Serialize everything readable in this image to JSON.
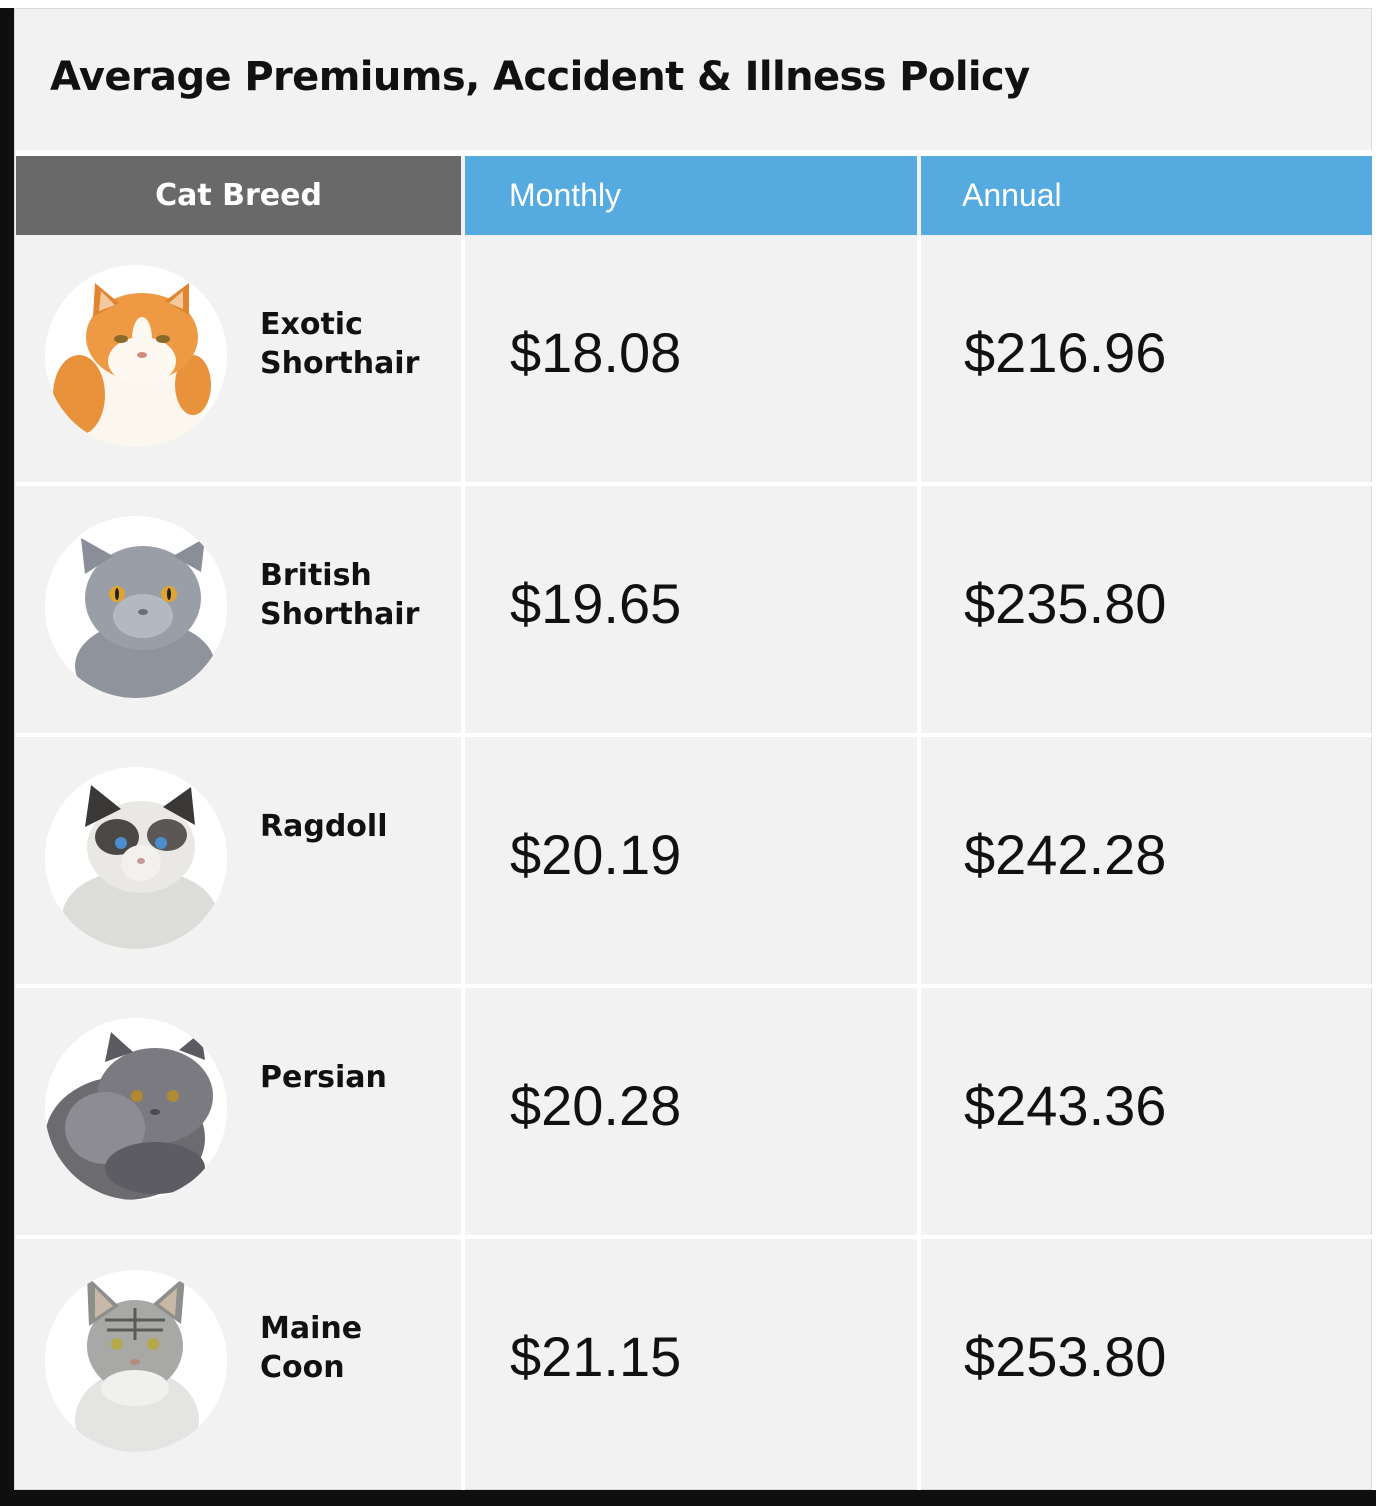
{
  "chart_data": {
    "type": "table",
    "title": "Average Premiums, Accident & Illness Policy",
    "columns": [
      "Cat Breed",
      "Monthly",
      "Annual"
    ],
    "rows": [
      {
        "breed": "Exotic Shorthair",
        "monthly": "$18.08",
        "annual": "$216.96",
        "monthly_value": 18.08,
        "annual_value": 216.96
      },
      {
        "breed": "British Shorthair",
        "monthly": "$19.65",
        "annual": "$235.80",
        "monthly_value": 19.65,
        "annual_value": 235.8
      },
      {
        "breed": "Ragdoll",
        "monthly": "$20.19",
        "annual": "$242.28",
        "monthly_value": 20.19,
        "annual_value": 242.28
      },
      {
        "breed": "Persian",
        "monthly": "$20.28",
        "annual": "$243.36",
        "monthly_value": 20.28,
        "annual_value": 243.36
      },
      {
        "breed": "Maine Coon",
        "monthly": "$21.15",
        "annual": "$253.80",
        "monthly_value": 21.15,
        "annual_value": 253.8
      }
    ]
  },
  "colors": {
    "header_breed_bg": "#696969",
    "header_price_bg": "#55aadf",
    "card_bg": "#f2f2f2",
    "divider": "#ffffff",
    "text": "#111111"
  },
  "icons": [
    "exotic-shorthair-cat-photo",
    "british-shorthair-cat-photo",
    "ragdoll-cat-photo",
    "persian-cat-photo",
    "maine-coon-cat-photo"
  ]
}
